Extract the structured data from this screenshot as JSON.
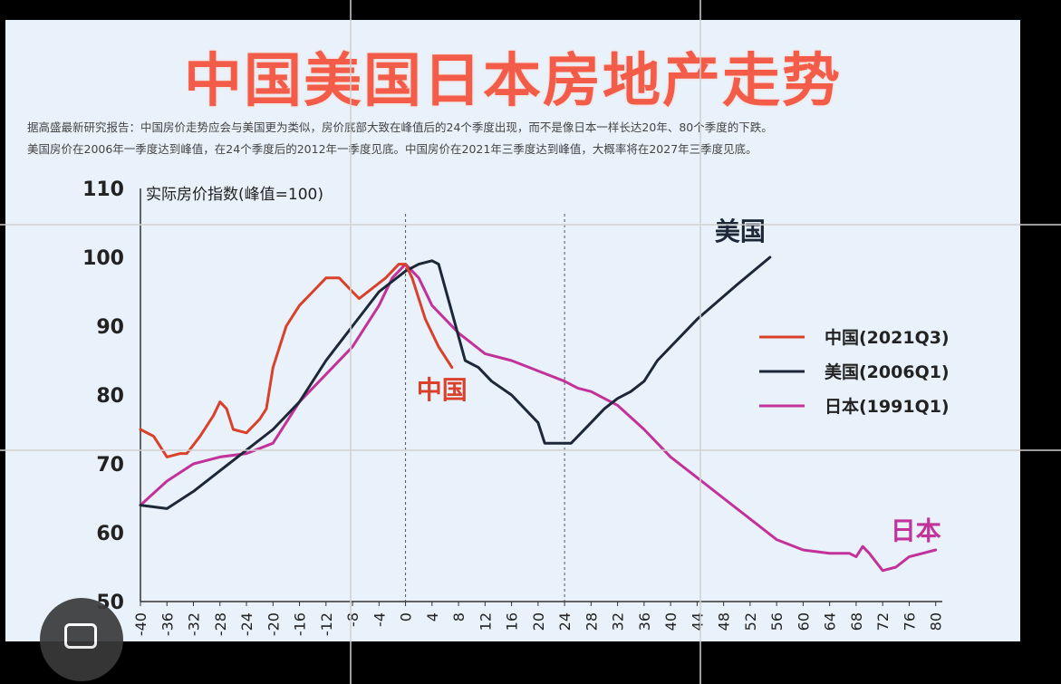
{
  "title": "中国美国日本房地产走势",
  "description": [
    "据高盛最新研究报告：中国房价走势应会与美国更为类似，房价底部大致在峰值后的24个季度出现，而不是像日本一样长达20年、80个季度的下跌。",
    "美国房价在2006年一季度达到峰值，在24个季度后的2012年一季度见底。中国房价在2021年三季度达到峰值，大概率将在2027年三季度见底。"
  ],
  "colors": {
    "china": "#d9412b",
    "usa": "#1c2838",
    "japan": "#c2329a",
    "title": "#f25c48"
  },
  "chart_data": {
    "type": "line",
    "ylabel": "实际房价指数(峰值=100)",
    "ylim": [
      50,
      110
    ],
    "yticks": [
      50,
      60,
      70,
      80,
      90,
      100,
      110
    ],
    "xlim": [
      -40,
      81
    ],
    "xticks": [
      "-40",
      "-36",
      "-32",
      "-28",
      "-24",
      "-20",
      "-16",
      "-12",
      "-8",
      "-4",
      "0",
      "4",
      "8",
      "12",
      "16",
      "20",
      "24",
      "28",
      "32",
      "36",
      "40",
      "44",
      "48",
      "52",
      "56",
      "60",
      "64",
      "68",
      "72",
      "76",
      "80"
    ],
    "vlines": [
      0,
      24
    ],
    "legend_position": "right",
    "series": [
      {
        "key": "china",
        "name": "中国(2021Q3)",
        "label": "中国",
        "points": [
          [
            -40,
            75
          ],
          [
            -38,
            74
          ],
          [
            -36,
            71
          ],
          [
            -34,
            71.5
          ],
          [
            -33,
            71.5
          ],
          [
            -31,
            74
          ],
          [
            -29,
            77
          ],
          [
            -28,
            79
          ],
          [
            -27,
            78
          ],
          [
            -26,
            75
          ],
          [
            -24,
            74.5
          ],
          [
            -22,
            76.5
          ],
          [
            -21,
            78
          ],
          [
            -20,
            84
          ],
          [
            -18,
            90
          ],
          [
            -16,
            93
          ],
          [
            -14,
            95
          ],
          [
            -12,
            97
          ],
          [
            -10,
            97
          ],
          [
            -8,
            95
          ],
          [
            -7,
            94
          ],
          [
            -5,
            95.5
          ],
          [
            -3,
            97
          ],
          [
            -1,
            99
          ],
          [
            0,
            99
          ],
          [
            1,
            97
          ],
          [
            3,
            91
          ],
          [
            5,
            87
          ],
          [
            7,
            84
          ]
        ]
      },
      {
        "key": "usa",
        "name": "美国(2006Q1)",
        "label": "美国",
        "points": [
          [
            -40,
            64
          ],
          [
            -36,
            63.5
          ],
          [
            -32,
            66
          ],
          [
            -28,
            69
          ],
          [
            -24,
            72
          ],
          [
            -20,
            75
          ],
          [
            -16,
            79
          ],
          [
            -12,
            85
          ],
          [
            -8,
            90
          ],
          [
            -4,
            95
          ],
          [
            0,
            98
          ],
          [
            2,
            99
          ],
          [
            4,
            99.5
          ],
          [
            5,
            99
          ],
          [
            7,
            92
          ],
          [
            9,
            85
          ],
          [
            11,
            84
          ],
          [
            13,
            82
          ],
          [
            16,
            80
          ],
          [
            20,
            76
          ],
          [
            21,
            73
          ],
          [
            25,
            73
          ],
          [
            28,
            76
          ],
          [
            30,
            78
          ],
          [
            32,
            79.5
          ],
          [
            34,
            80.5
          ],
          [
            36,
            82
          ],
          [
            38,
            85
          ],
          [
            44,
            91
          ],
          [
            50,
            96
          ],
          [
            55,
            100
          ]
        ]
      },
      {
        "key": "japan",
        "name": "日本(1991Q1)",
        "label": "日本",
        "points": [
          [
            -40,
            64
          ],
          [
            -36,
            67.5
          ],
          [
            -32,
            70
          ],
          [
            -28,
            71
          ],
          [
            -24,
            71.5
          ],
          [
            -20,
            73
          ],
          [
            -16,
            79
          ],
          [
            -12,
            83
          ],
          [
            -8,
            87
          ],
          [
            -4,
            93
          ],
          [
            -2,
            97
          ],
          [
            0,
            99
          ],
          [
            2,
            97
          ],
          [
            4,
            93
          ],
          [
            8,
            89
          ],
          [
            12,
            86
          ],
          [
            16,
            85
          ],
          [
            20,
            83.5
          ],
          [
            24,
            82
          ],
          [
            26,
            81
          ],
          [
            28,
            80.5
          ],
          [
            32,
            78.5
          ],
          [
            36,
            75
          ],
          [
            40,
            71
          ],
          [
            44,
            68
          ],
          [
            48,
            65
          ],
          [
            52,
            62
          ],
          [
            56,
            59
          ],
          [
            60,
            57.5
          ],
          [
            64,
            57
          ],
          [
            67,
            57
          ],
          [
            68,
            56.5
          ],
          [
            69,
            58
          ],
          [
            70,
            57
          ],
          [
            72,
            54.5
          ],
          [
            74,
            55
          ],
          [
            76,
            56.5
          ],
          [
            78,
            57
          ],
          [
            80,
            57.5
          ]
        ]
      }
    ]
  }
}
